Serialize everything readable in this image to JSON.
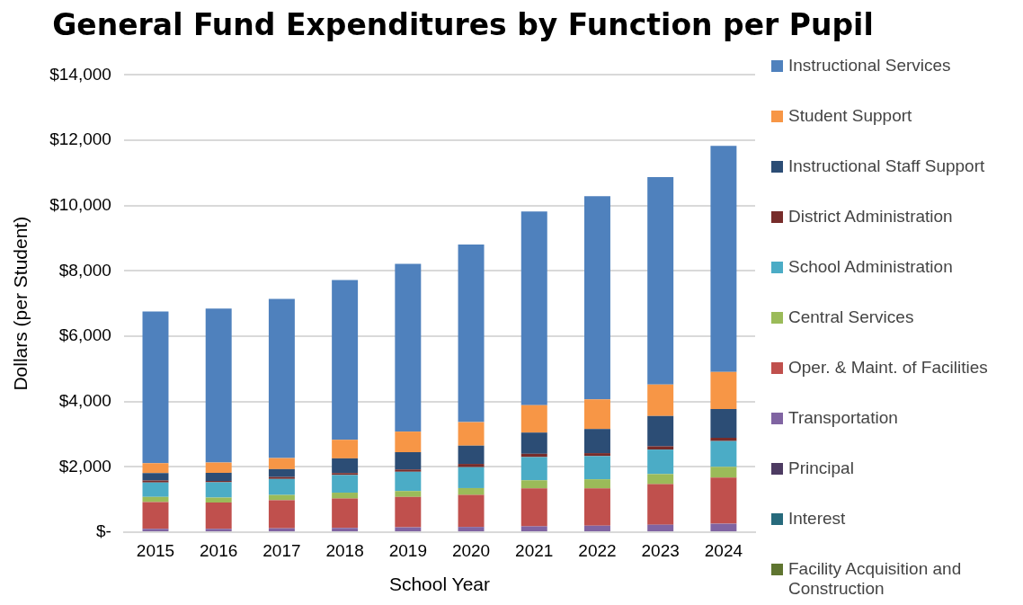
{
  "chart_data": {
    "type": "bar",
    "title": "General Fund Expenditures by Function per Pupil",
    "xlabel": "School Year",
    "ylabel": "Dollars (per Student)",
    "categories": [
      "2015",
      "2016",
      "2017",
      "2018",
      "2019",
      "2020",
      "2021",
      "2022",
      "2023",
      "2024"
    ],
    "stacked": true,
    "grid": "y",
    "legend": "right",
    "ylim": [
      0,
      14000
    ],
    "yticks": [
      {
        "value": 0,
        "label": "$-"
      },
      {
        "value": 2000,
        "label": "$2,000"
      },
      {
        "value": 4000,
        "label": "$4,000"
      },
      {
        "value": 6000,
        "label": "$6,000"
      },
      {
        "value": 8000,
        "label": "$8,000"
      },
      {
        "value": 10000,
        "label": "$10,000"
      },
      {
        "value": 12000,
        "label": "$12,000"
      },
      {
        "value": 14000,
        "label": "$14,000"
      }
    ],
    "series": [
      {
        "name": "Facility Acquisition and Construction",
        "color": "#5f7530",
        "values": [
          0,
          0,
          0,
          0,
          0,
          0,
          0,
          0,
          0,
          0
        ]
      },
      {
        "name": "Interest",
        "color": "#276a7c",
        "values": [
          0,
          0,
          0,
          0,
          0,
          0,
          0,
          0,
          0,
          0
        ]
      },
      {
        "name": "Principal",
        "color": "#4d3b62",
        "values": [
          0,
          0,
          0,
          0,
          0,
          0,
          0,
          0,
          0,
          0
        ]
      },
      {
        "name": "Transportation",
        "color": "#8064a2",
        "values": [
          100,
          100,
          120,
          130,
          150,
          160,
          180,
          200,
          230,
          260
        ]
      },
      {
        "name": "Oper. & Maint. of Facilities",
        "color": "#c0504d",
        "values": [
          820,
          810,
          860,
          900,
          930,
          980,
          1160,
          1140,
          1240,
          1410
        ]
      },
      {
        "name": "Central Services",
        "color": "#9bbb59",
        "values": [
          160,
          150,
          160,
          180,
          180,
          210,
          250,
          280,
          310,
          330
        ]
      },
      {
        "name": "School Administration",
        "color": "#4bacc6",
        "values": [
          440,
          470,
          490,
          540,
          590,
          640,
          710,
          710,
          750,
          790
        ]
      },
      {
        "name": "District Administration",
        "color": "#772c2a",
        "values": [
          60,
          40,
          60,
          60,
          70,
          100,
          100,
          90,
          100,
          100
        ]
      },
      {
        "name": "Instructional Staff Support",
        "color": "#2c4d75",
        "values": [
          230,
          250,
          240,
          450,
          530,
          560,
          650,
          740,
          930,
          880
        ]
      },
      {
        "name": "Student Support",
        "color": "#f79646",
        "values": [
          300,
          310,
          340,
          570,
          630,
          720,
          840,
          910,
          960,
          1140
        ]
      },
      {
        "name": "Instructional Services",
        "color": "#4f81bd",
        "values": [
          4650,
          4720,
          4870,
          4890,
          5140,
          5440,
          5930,
          6220,
          6350,
          6920
        ]
      }
    ]
  }
}
